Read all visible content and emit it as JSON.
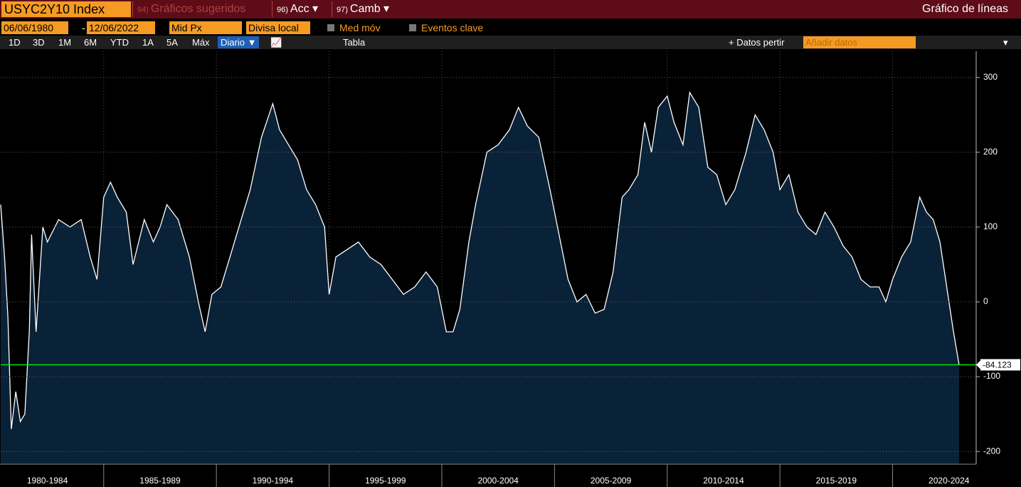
{
  "header": {
    "ticker": "USYC2Y10 Index",
    "menus": [
      {
        "num": "94)",
        "label": "Gráficos sugeridos"
      },
      {
        "num": "96)",
        "label": "Acc"
      },
      {
        "num": "97)",
        "label": "Camb"
      }
    ],
    "view_title": "Gráfico de líneas"
  },
  "controls": {
    "start_date": "06/06/1980",
    "end_date": "12/06/2022",
    "price": "Mid Px",
    "currency": "Divisa local",
    "moving_avg": "Med móv",
    "key_events": "Eventos clave"
  },
  "toolbar": {
    "ranges": [
      "1D",
      "3D",
      "1M",
      "6M",
      "YTD",
      "1A",
      "5A",
      "Máx"
    ],
    "frequency": "Diario ▼",
    "table": "Tabla",
    "add_data_button": "+ Datos pertir",
    "add_data_input": "Añadir datos"
  },
  "chart_data": {
    "type": "area",
    "x": [
      1980.43,
      1980.6,
      1980.75,
      1980.9,
      1981.1,
      1981.3,
      1981.5,
      1981.7,
      1981.8,
      1982.0,
      1982.3,
      1982.5,
      1983.0,
      1983.5,
      1984.0,
      1984.4,
      1984.7,
      1985.0,
      1985.3,
      1985.6,
      1986.0,
      1986.3,
      1986.8,
      1987.2,
      1987.5,
      1987.8,
      1988.3,
      1988.8,
      1989.2,
      1989.5,
      1989.8,
      1990.2,
      1990.6,
      1991.0,
      1991.5,
      1992.0,
      1992.5,
      1992.8,
      1993.2,
      1993.6,
      1994.0,
      1994.4,
      1994.8,
      1995.0,
      1995.3,
      1995.8,
      1996.3,
      1996.8,
      1997.3,
      1997.8,
      1998.3,
      1998.8,
      1999.3,
      1999.8,
      2000.2,
      2000.5,
      2000.8,
      2001.2,
      2001.5,
      2002.0,
      2002.5,
      2003.0,
      2003.4,
      2003.8,
      2004.3,
      2004.8,
      2005.2,
      2005.6,
      2006.0,
      2006.4,
      2006.8,
      2007.2,
      2007.6,
      2008.0,
      2008.3,
      2008.7,
      2009.0,
      2009.3,
      2009.6,
      2010.0,
      2010.3,
      2010.7,
      2011.0,
      2011.4,
      2011.8,
      2012.2,
      2012.6,
      2013.0,
      2013.5,
      2013.9,
      2014.3,
      2014.7,
      2015.0,
      2015.4,
      2015.8,
      2016.2,
      2016.6,
      2017.0,
      2017.4,
      2017.8,
      2018.2,
      2018.6,
      2019.0,
      2019.4,
      2019.7,
      2020.0,
      2020.4,
      2020.8,
      2021.2,
      2021.5,
      2021.8,
      2022.1,
      2022.4,
      2022.7,
      2022.95
    ],
    "series": [
      {
        "color": "#ffffff",
        "fill": "#0a2238",
        "values": [
          130,
          60,
          -20,
          -170,
          -120,
          -160,
          -150,
          -40,
          90,
          -40,
          100,
          80,
          110,
          100,
          110,
          60,
          30,
          140,
          160,
          140,
          120,
          50,
          110,
          80,
          100,
          130,
          110,
          60,
          0,
          -40,
          10,
          20,
          60,
          100,
          150,
          220,
          265,
          230,
          210,
          190,
          150,
          130,
          100,
          10,
          60,
          70,
          80,
          60,
          50,
          30,
          10,
          20,
          40,
          20,
          -40,
          -40,
          -10,
          80,
          130,
          200,
          210,
          230,
          260,
          235,
          220,
          150,
          90,
          30,
          0,
          10,
          -15,
          -10,
          40,
          140,
          150,
          170,
          240,
          200,
          260,
          275,
          240,
          210,
          280,
          260,
          180,
          170,
          130,
          150,
          200,
          250,
          230,
          200,
          150,
          170,
          120,
          100,
          90,
          120,
          100,
          75,
          60,
          30,
          20,
          20,
          0,
          30,
          60,
          80,
          140,
          120,
          110,
          80,
          20,
          -40,
          -84.123
        ]
      }
    ],
    "reference_line": {
      "value": -84.123,
      "color": "#00e600"
    },
    "xlim": [
      1980.43,
      2022.95
    ],
    "xticks": [
      {
        "value": 1982.5,
        "label": "1980-1984"
      },
      {
        "value": 1987.5,
        "label": "1985-1989"
      },
      {
        "value": 1992.5,
        "label": "1990-1994"
      },
      {
        "value": 1997.5,
        "label": "1995-1999"
      },
      {
        "value": 2002.5,
        "label": "2000-2004"
      },
      {
        "value": 2007.5,
        "label": "2005-2009"
      },
      {
        "value": 2012.5,
        "label": "2010-2014"
      },
      {
        "value": 2017.5,
        "label": "2015-2019"
      },
      {
        "value": 2022.5,
        "label": "2020-2024"
      }
    ],
    "ylim": [
      -217,
      335
    ],
    "yticks": [
      -200,
      -100,
      0,
      100,
      200,
      300
    ],
    "grid": true
  }
}
